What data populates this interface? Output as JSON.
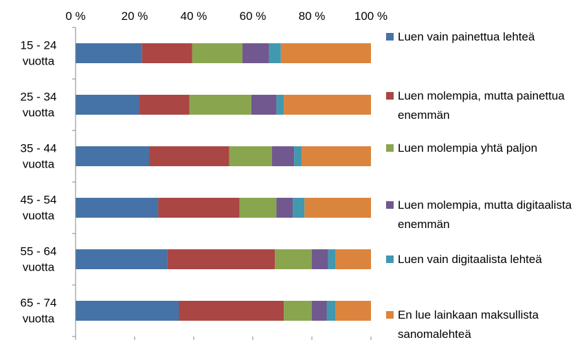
{
  "chart_data": {
    "type": "bar",
    "orientation": "horizontal",
    "stacked": "percent",
    "categories": [
      "15 - 24 vuotta",
      "25 - 34 vuotta",
      "35 - 44 vuotta",
      "45 - 54 vuotta",
      "55 - 64 vuotta",
      "65 - 74 vuotta"
    ],
    "xlim": [
      0,
      100
    ],
    "xticks": [
      "0 %",
      "20 %",
      "40 %",
      "60 %",
      "80 %",
      "100 %"
    ],
    "x_axis_position": "top",
    "grid": false,
    "legend_position": "right",
    "series": [
      {
        "name": "Luen vain  painettua lehteä",
        "color": "#4572A7",
        "values": [
          22.5,
          21.5,
          25,
          28,
          31,
          35
        ]
      },
      {
        "name": "Luen molempia, mutta painettua enemmän",
        "color": "#AA4643",
        "values": [
          17,
          17,
          27,
          27.5,
          36.5,
          35.5
        ]
      },
      {
        "name": "Luen molempia yhtä paljon",
        "color": "#89A54E",
        "values": [
          17,
          21,
          14.5,
          12.5,
          12.5,
          9.5
        ]
      },
      {
        "name": "Luen molempia, mutta digitaalista enemmän",
        "color": "#71588F",
        "values": [
          9,
          8.5,
          7.5,
          5.5,
          5.5,
          5
        ]
      },
      {
        "name": "Luen vain  digitaalista lehteä",
        "color": "#4198AF",
        "values": [
          4,
          2.5,
          2.5,
          4,
          2.5,
          3
        ]
      },
      {
        "name": "En lue lainkaan maksullista sanomalehteä",
        "color": "#DB843D",
        "values": [
          30.5,
          29.5,
          23.5,
          22.5,
          12,
          12
        ]
      }
    ]
  }
}
